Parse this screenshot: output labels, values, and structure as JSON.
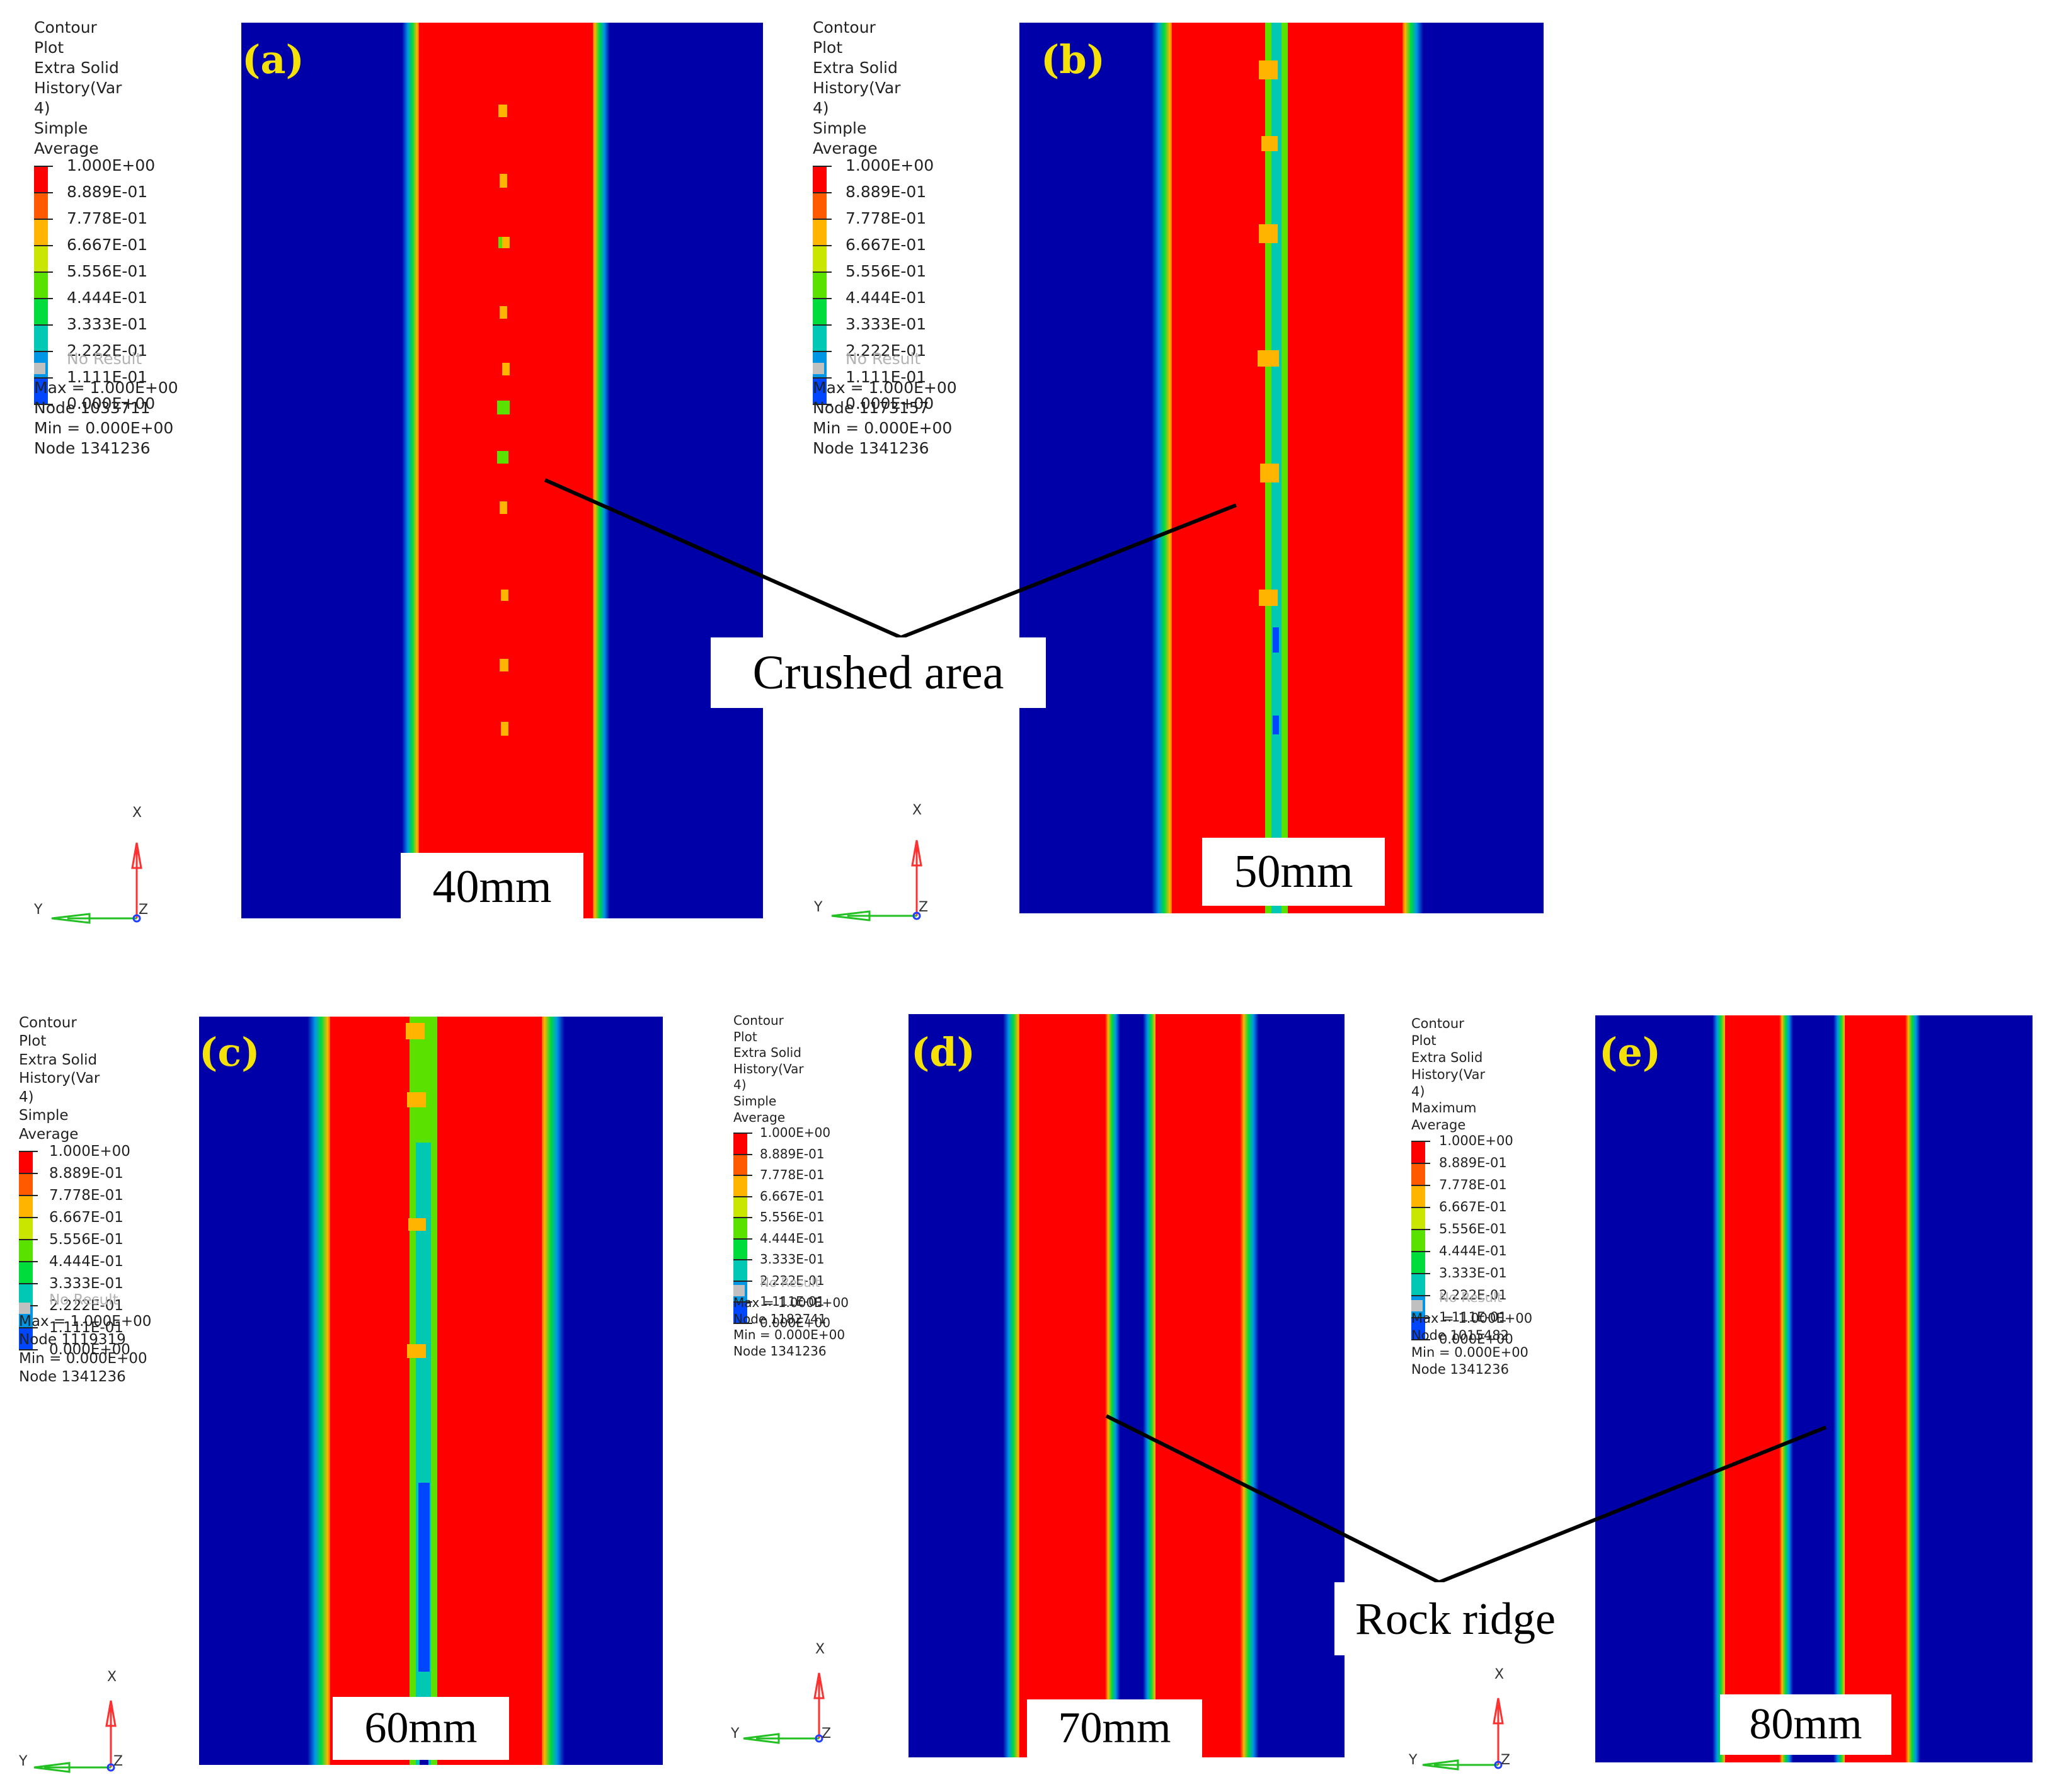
{
  "legend_scale": [
    "1.000E+00",
    "8.889E-01",
    "7.778E-01",
    "6.667E-01",
    "5.556E-01",
    "4.444E-01",
    "3.333E-01",
    "2.222E-01",
    "1.111E-01",
    "0.000E+00"
  ],
  "colors": {
    "background": "#0000a8",
    "scale": [
      "#ff0000",
      "#ff5a00",
      "#ffb400",
      "#c8e600",
      "#5ae100",
      "#00dc3c",
      "#00c8b4",
      "#0096e6",
      "#0046ff",
      "#0000a8"
    ],
    "label_yellow": "#f5e10a"
  },
  "panels": [
    {
      "tag": "(a)",
      "thickness": "40mm",
      "legend": {
        "title": "Contour Plot",
        "variable": "Extra Solid History(Var 4)",
        "averaging": "Simple Average",
        "no_result": "No Result",
        "max": "Max =  1.000E+00",
        "max_node": "Node 1033711",
        "min": "Min =  0.000E+00",
        "min_node": "Node 1341236"
      },
      "axes": {
        "x": "X",
        "y": "Y",
        "z": "Z"
      }
    },
    {
      "tag": "(b)",
      "thickness": "50mm",
      "legend": {
        "title": "Contour Plot",
        "variable": "Extra Solid History(Var 4)",
        "averaging": "Simple Average",
        "no_result": "No Result",
        "max": "Max =  1.000E+00",
        "max_node": "Node 1173157",
        "min": "Min =  0.000E+00",
        "min_node": "Node 1341236"
      },
      "axes": {
        "x": "X",
        "y": "Y",
        "z": "Z"
      }
    },
    {
      "tag": "(c)",
      "thickness": "60mm",
      "legend": {
        "title": "Contour Plot",
        "variable": "Extra Solid History(Var 4)",
        "averaging": "Simple Average",
        "no_result": "No Result",
        "max": "Max =  1.000E+00",
        "max_node": "Node 1119319",
        "min": "Min =  0.000E+00",
        "min_node": "Node 1341236"
      },
      "axes": {
        "x": "X",
        "y": "Y",
        "z": "Z"
      }
    },
    {
      "tag": "(d)",
      "thickness": "70mm",
      "legend": {
        "title": "Contour Plot",
        "variable": "Extra Solid History(Var 4)",
        "averaging": "Simple Average",
        "no_result": "No Result",
        "max": "Max =  1.000E+00",
        "max_node": "Node 1182741",
        "min": "Min =  0.000E+00",
        "min_node": "Node 1341236"
      },
      "axes": {
        "x": "X",
        "y": "Y",
        "z": "Z"
      }
    },
    {
      "tag": "(e)",
      "thickness": "80mm",
      "legend": {
        "title": "Contour Plot",
        "variable": "Extra Solid History(Var 4)",
        "averaging": "Maximum Average",
        "no_result": "No Result",
        "max": "Max =  1.000E+00",
        "max_node": "Node 1015482",
        "min": "Min =  0.000E+00",
        "min_node": "Node 1341236"
      },
      "axes": {
        "x": "X",
        "y": "Y",
        "z": "Z"
      }
    }
  ],
  "callouts": {
    "crushed": "Crushed area",
    "ridge": "Rock ridge"
  }
}
